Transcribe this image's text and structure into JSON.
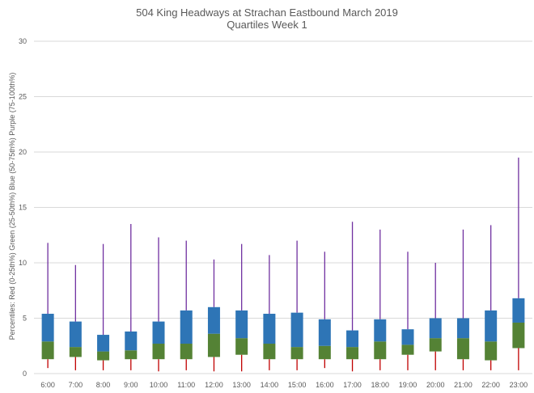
{
  "chart_data": {
    "type": "box",
    "title": "504 King Headways at Strachan Eastbound March 2019",
    "subtitle": "Quartiles Week 1",
    "ylabel": "Percentiles:  Red (0-25th%)  Green (25-50th%)  Blue (50-75th%)  Purple (75-100th%)",
    "ylim": [
      0,
      30
    ],
    "yticks": [
      0,
      5,
      10,
      15,
      20,
      25,
      30
    ],
    "grid": true,
    "colors": {
      "red": "#c00000",
      "green": "#548235",
      "blue": "#2e75b6",
      "purple": "#7030a0"
    },
    "categories": [
      "6:00",
      "7:00",
      "8:00",
      "9:00",
      "10:00",
      "11:00",
      "12:00",
      "13:00",
      "14:00",
      "15:00",
      "16:00",
      "17:00",
      "18:00",
      "19:00",
      "20:00",
      "21:00",
      "22:00",
      "23:00"
    ],
    "min": [
      0.5,
      0.3,
      0.3,
      0.3,
      0.2,
      0.3,
      0.2,
      0.2,
      0.3,
      0.3,
      0.5,
      0.2,
      0.3,
      0.3,
      0.3,
      0.3,
      0.3,
      0.3
    ],
    "q1": [
      1.3,
      1.5,
      1.2,
      1.3,
      1.3,
      1.3,
      1.5,
      1.7,
      1.3,
      1.3,
      1.3,
      1.3,
      1.3,
      1.7,
      2.0,
      1.3,
      1.2,
      2.3
    ],
    "median": [
      2.9,
      2.4,
      2.0,
      2.1,
      2.7,
      2.7,
      3.6,
      3.2,
      2.7,
      2.4,
      2.5,
      2.4,
      2.9,
      2.6,
      3.2,
      3.2,
      2.9,
      4.6
    ],
    "q3": [
      5.4,
      4.7,
      3.5,
      3.8,
      4.7,
      5.7,
      6.0,
      5.7,
      5.4,
      5.5,
      4.9,
      3.9,
      4.9,
      4.0,
      5.0,
      5.0,
      5.7,
      6.8
    ],
    "max": [
      11.8,
      9.8,
      11.7,
      13.5,
      12.3,
      12.0,
      10.3,
      11.7,
      10.7,
      12.0,
      11.0,
      13.7,
      13.0,
      11.0,
      10.0,
      13.0,
      13.4,
      19.5
    ]
  }
}
